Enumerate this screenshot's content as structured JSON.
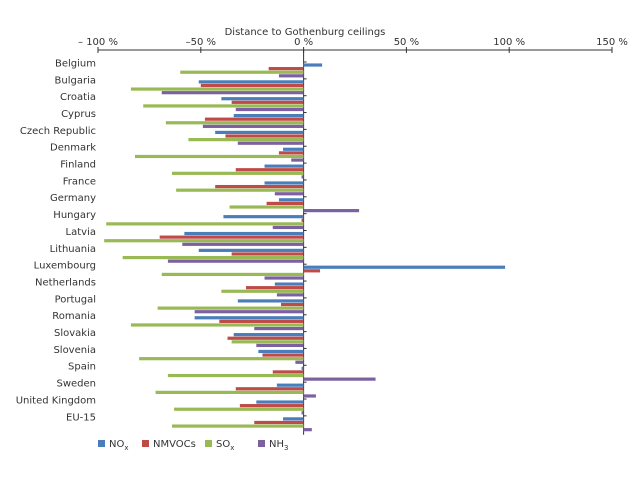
{
  "chart_data": {
    "type": "bar",
    "orientation": "horizontal",
    "title": "Distance to Gothenburg ceilings",
    "xlim": [
      -100,
      150
    ],
    "xticks": [
      -100,
      -50,
      0,
      50,
      100,
      150
    ],
    "xtick_labels": [
      "– 100 %",
      "–50 %",
      "0 %",
      "50 %",
      "100 %",
      "150 %"
    ],
    "axis_position": "top",
    "grid": false,
    "legend_position": "bottom-left",
    "categories": [
      "Belgium",
      "Bulgaria",
      "Croatia",
      "Cyprus",
      "Czech Republic",
      "Denmark",
      "Finland",
      "France",
      "Germany",
      "Hungary",
      "Latvia",
      "Lithuania",
      "Luxembourg",
      "Netherlands",
      "Portugal",
      "Romania",
      "Slovakia",
      "Slovenia",
      "Spain",
      "Sweden",
      "United Kingdom",
      "EU-15"
    ],
    "series": [
      {
        "name": "NOx",
        "label_main": "NO",
        "label_sub": "x",
        "color": "#4a7ebb",
        "values": [
          9,
          -51,
          -40,
          -34,
          -43,
          -10,
          -19,
          -19,
          -12,
          -39,
          -58,
          -51,
          98,
          -14,
          -32,
          -53,
          -34,
          -22,
          -1,
          -13,
          -23,
          -10
        ]
      },
      {
        "name": "NMVOCs",
        "label_main": "NMVOCs",
        "label_sub": "",
        "color": "#be4b48",
        "values": [
          -17,
          -50,
          -35,
          -48,
          -38,
          -12,
          -33,
          -43,
          -18,
          -1,
          -70,
          -35,
          8,
          -28,
          -11,
          -41,
          -37,
          -20,
          -15,
          -33,
          -31,
          -24
        ]
      },
      {
        "name": "SOx",
        "label_main": "SO",
        "label_sub": "x",
        "color": "#98b954",
        "values": [
          -60,
          -84,
          -78,
          -67,
          -56,
          -82,
          -64,
          -62,
          -36,
          -96,
          -97,
          -88,
          -69,
          -40,
          -71,
          -84,
          -35,
          -80,
          -66,
          -72,
          -63,
          -64
        ]
      },
      {
        "name": "NH3",
        "label_main": "NH",
        "label_sub": "3",
        "color": "#7d60a0",
        "values": [
          -12,
          -69,
          -33,
          -49,
          -32,
          -6,
          -1,
          -14,
          27,
          -15,
          -59,
          -66,
          -19,
          -13,
          -53,
          -24,
          -23,
          -4,
          35,
          6,
          -1,
          4
        ]
      }
    ]
  }
}
